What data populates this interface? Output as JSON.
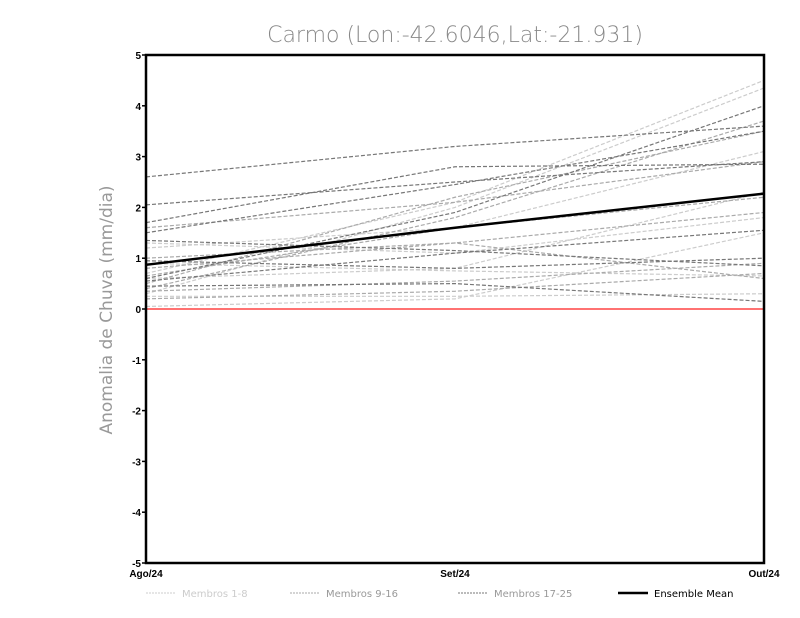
{
  "chart_data": {
    "type": "line",
    "title": "Carmo (Lon:-42.6046,Lat:-21.931)",
    "xlabel": "",
    "ylabel": "Anomalia de Chuva (mm/dia)",
    "categories": [
      "Ago/24",
      "Set/24",
      "Out/24"
    ],
    "ylim": [
      -5,
      5
    ],
    "yticks": [
      "5",
      "4",
      "3",
      "2",
      "1",
      "0",
      "-1",
      "-2",
      "-3",
      "-4",
      "-5"
    ],
    "colors": {
      "g1": "#cccccc",
      "g2": "#aaaaaa",
      "g3": "#777777",
      "mean": "#000000",
      "zero": "#ff4444"
    },
    "legend": {
      "placement": "bottom",
      "entries": [
        "Membros 1-8",
        "Membros 9-16",
        "Membros 17-25",
        "Ensemble Mean"
      ]
    },
    "series": [
      {
        "name": "Membros 1-8",
        "group": "g1",
        "members": [
          [
            0.7,
            2.1,
            4.5
          ],
          [
            0.3,
            2.0,
            4.35
          ],
          [
            0.05,
            0.2,
            1.5
          ],
          [
            0.9,
            0.75,
            0.65
          ],
          [
            1.2,
            1.6,
            3.1
          ],
          [
            0.25,
            0.25,
            0.3
          ],
          [
            0.6,
            0.8,
            2.3
          ],
          [
            1.3,
            1.1,
            1.8
          ]
        ]
      },
      {
        "name": "Membros 9-16",
        "group": "g2",
        "members": [
          [
            0.4,
            1.8,
            3.7
          ],
          [
            1.0,
            1.3,
            0.6
          ],
          [
            0.5,
            2.2,
            3.5
          ],
          [
            0.2,
            0.35,
            0.7
          ],
          [
            1.6,
            2.1,
            2.9
          ],
          [
            0.8,
            1.3,
            1.9
          ],
          [
            0.35,
            0.55,
            0.9
          ],
          [
            0.65,
            1.6,
            2.2
          ]
        ]
      },
      {
        "name": "Membros 17-25",
        "group": "g3",
        "members": [
          [
            2.6,
            3.2,
            3.6
          ],
          [
            2.05,
            2.5,
            2.9
          ],
          [
            1.5,
            2.45,
            3.5
          ],
          [
            1.7,
            2.8,
            2.85
          ],
          [
            0.55,
            1.1,
            1.55
          ],
          [
            0.95,
            0.8,
            1.0
          ],
          [
            0.45,
            0.5,
            0.15
          ],
          [
            1.35,
            1.15,
            0.85
          ],
          [
            0.6,
            1.9,
            4.0
          ]
        ]
      },
      {
        "name": "Ensemble Mean",
        "group": "mean",
        "values": [
          0.87,
          1.6,
          2.27
        ]
      }
    ]
  }
}
